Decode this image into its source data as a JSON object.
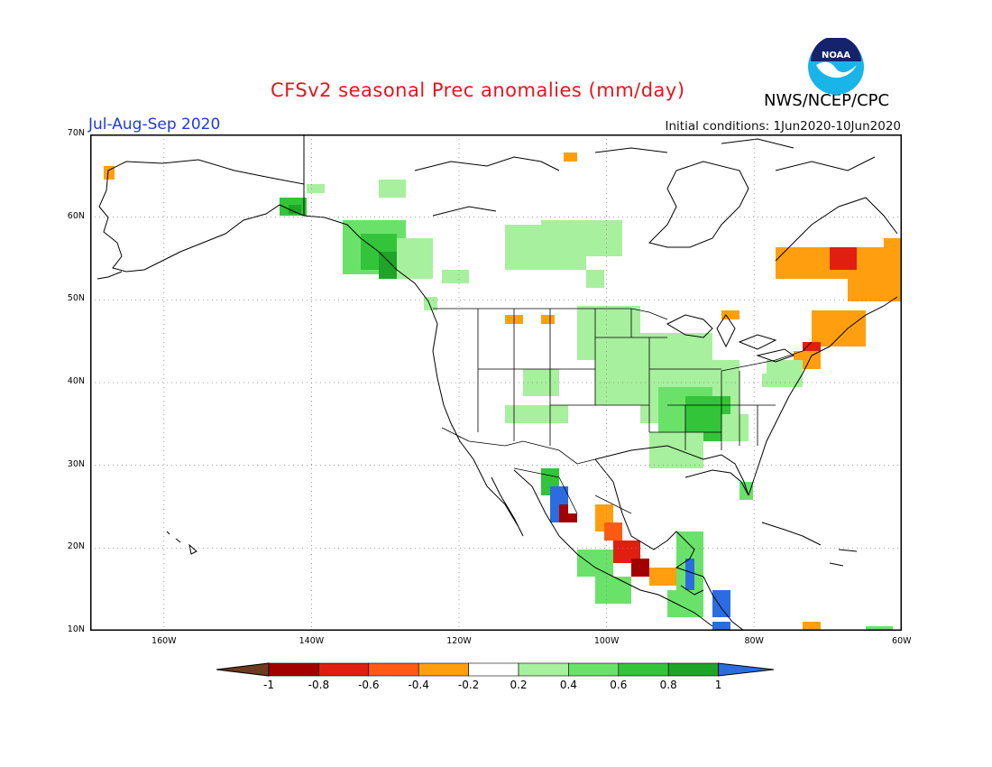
{
  "title": "CFSv2 seasonal Prec anomalies (mm/day)",
  "agency": "NWS/NCEP/CPC",
  "season": "Jul-Aug-Sep 2020",
  "initial_conditions": "Initial conditions: 1Jun2020-10Jun2020",
  "logo_text": "NOAA",
  "lat_labels": [
    "70N",
    "60N",
    "50N",
    "40N",
    "30N",
    "20N",
    "10N"
  ],
  "lon_labels": [
    "160W",
    "140W",
    "120W",
    "100W",
    "80W",
    "60W"
  ],
  "colorbar": {
    "ticks": [
      "-1",
      "-0.8",
      "-0.6",
      "-0.4",
      "-0.2",
      "0.2",
      "0.4",
      "0.6",
      "0.8",
      "1"
    ],
    "colors": [
      "#6e3b1e",
      "#a30000",
      "#e01f10",
      "#ff5a14",
      "#ff9f10",
      "#ffffff",
      "#a7f09d",
      "#6ae26a",
      "#33c43a",
      "#1ea528",
      "#2b6de0"
    ]
  }
}
